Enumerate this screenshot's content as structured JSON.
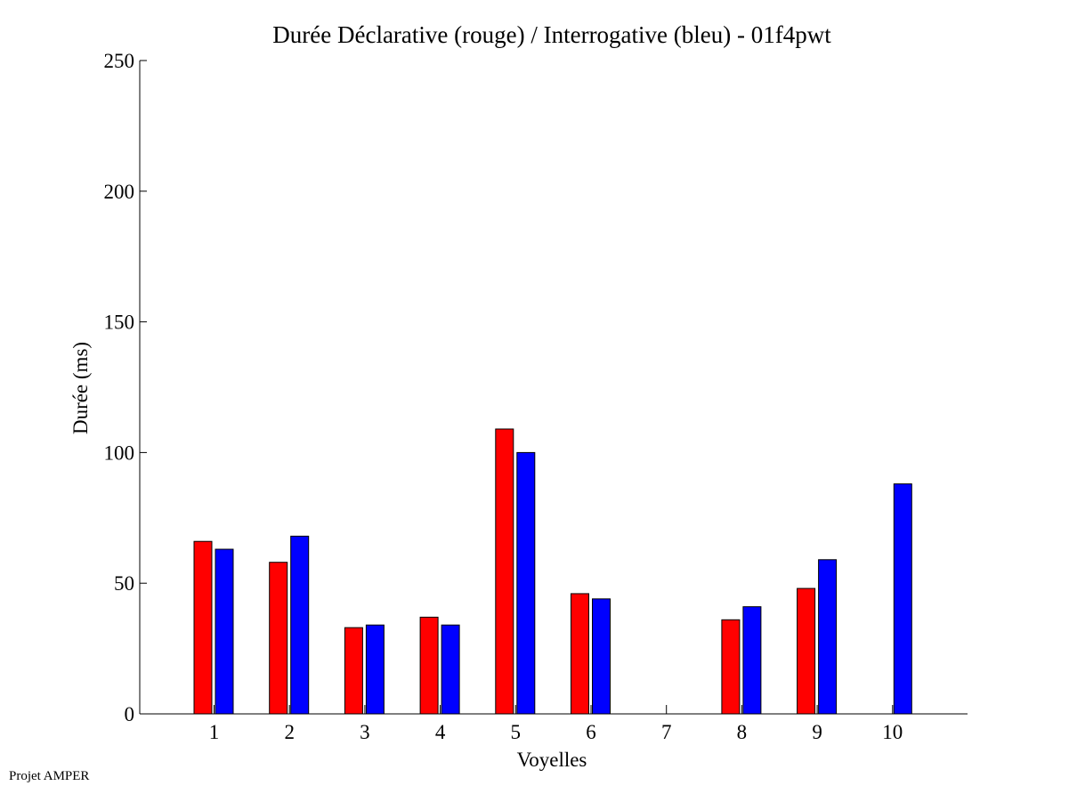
{
  "footer": {
    "note": "Projet AMPER"
  },
  "colors": {
    "declarative": "#ff0000",
    "interrogative": "#0000ff",
    "axis": "#000000"
  },
  "chart_data": {
    "type": "bar",
    "title": "Durée Déclarative (rouge) / Interrogative (bleu) - 01f4pwt",
    "xlabel": "Voyelles",
    "ylabel": "Durée (ms)",
    "categories": [
      "1",
      "2",
      "3",
      "4",
      "5",
      "6",
      "7",
      "8",
      "9",
      "10"
    ],
    "ylim": [
      0,
      250
    ],
    "yticks": [
      "0",
      "50",
      "100",
      "150",
      "200",
      "250"
    ],
    "grid": false,
    "series": [
      {
        "color": "#ff0000",
        "values": [
          66,
          58,
          33,
          37,
          109,
          46,
          null,
          36,
          48,
          null
        ]
      },
      {
        "color": "#0000ff",
        "values": [
          63,
          68,
          34,
          34,
          100,
          44,
          null,
          41,
          59,
          88
        ]
      }
    ]
  }
}
